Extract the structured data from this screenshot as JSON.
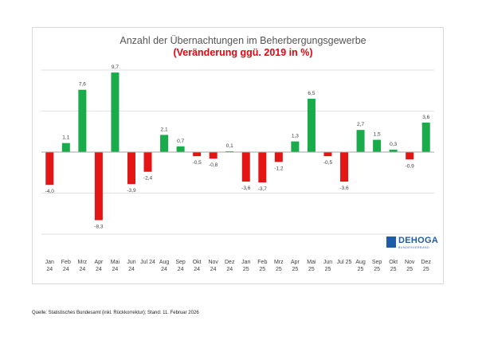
{
  "colors": {
    "positive": "#1aab4b",
    "negative": "#e31515",
    "gridline": "#d9d9d9",
    "zeroline": "#a6a6a6"
  },
  "logo": {
    "text": "DEHOGA",
    "tagline": "BUNDESVERBAND"
  },
  "source": "Quelle: Statistisches Bundesamt (inkl. Rückkorrektur); Stand: 11. Februar 2026",
  "chart_data": {
    "type": "bar",
    "title": "Anzahl der Übernachtungen im Beherbergungsgewerbe",
    "subtitle": "(Veränderung ggü. 2019 in %)",
    "xlabel": "",
    "ylabel": "",
    "ylim": [
      -10,
      10
    ],
    "grid": true,
    "categories": [
      [
        "Jan",
        "24"
      ],
      [
        "Feb",
        "24"
      ],
      [
        "Mrz",
        "24"
      ],
      [
        "Apr",
        "24"
      ],
      [
        "Mai",
        "24"
      ],
      [
        "Jun",
        "24"
      ],
      [
        "Jul 24",
        ""
      ],
      [
        "Aug",
        "24"
      ],
      [
        "Sep",
        "24"
      ],
      [
        "Okt",
        "24"
      ],
      [
        "Nov",
        "24"
      ],
      [
        "Dez",
        "24"
      ],
      [
        "Jan",
        "25"
      ],
      [
        "Feb",
        "25"
      ],
      [
        "Mrz",
        "25"
      ],
      [
        "Apr",
        "25"
      ],
      [
        "Mai",
        "25"
      ],
      [
        "Jun",
        "25"
      ],
      [
        "Jul 25",
        ""
      ],
      [
        "Aug",
        "25"
      ],
      [
        "Sep",
        "25"
      ],
      [
        "Okt",
        "25"
      ],
      [
        "Nov",
        "25"
      ],
      [
        "Dez",
        "25"
      ]
    ],
    "values": [
      -4.0,
      1.1,
      7.6,
      -8.3,
      9.7,
      -3.9,
      -2.4,
      2.1,
      0.7,
      -0.5,
      -0.8,
      0.1,
      -3.6,
      -3.7,
      -1.2,
      1.3,
      6.5,
      -0.5,
      -3.6,
      2.7,
      1.5,
      0.3,
      -0.9,
      3.6
    ],
    "labels": [
      "-4,0",
      "1,1",
      "7,6",
      "-8,3",
      "9,7",
      "-3,9",
      "-2,4",
      "2,1",
      "0,7",
      "-0,5",
      "-0,8",
      "0,1",
      "-3,6",
      "-3,7",
      "-1,2",
      "1,3",
      "6,5",
      "-0,5",
      "-3,6",
      "2,7",
      "1,5",
      "0,3",
      "-0,9",
      "3,6"
    ]
  }
}
